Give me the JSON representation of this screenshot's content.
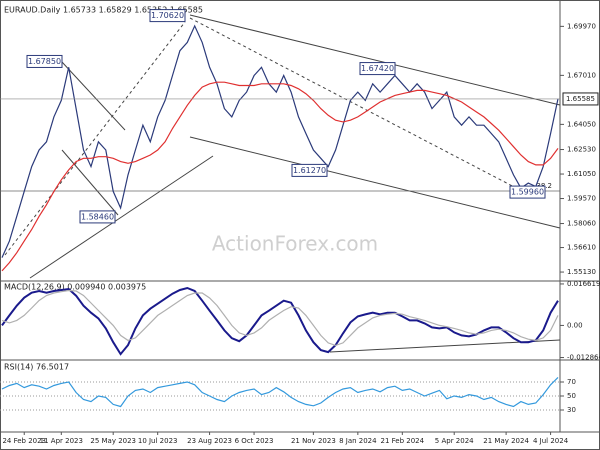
{
  "chart_data": [
    {
      "type": "line",
      "title": "EURAUD.Daily 1.65733 1.65829 1.65352 1.65585",
      "categories": [
        null,
        null,
        null,
        "24 Feb 2023",
        null,
        null,
        null,
        null,
        "11 Apr 2023",
        null,
        null,
        null,
        null,
        null,
        null,
        "25 May 2023",
        null,
        null,
        null,
        null,
        null,
        "10 Jul 2023",
        null,
        null,
        null,
        null,
        null,
        null,
        "23 Aug 2023",
        null,
        null,
        null,
        null,
        null,
        "6 Oct 2023",
        null,
        null,
        null,
        null,
        null,
        null,
        null,
        "21 Nov 2023",
        null,
        null,
        null,
        null,
        null,
        "8 Jan 2024",
        null,
        null,
        null,
        null,
        null,
        "21 Feb 2024",
        null,
        null,
        null,
        null,
        null,
        null,
        "5 Apr 2024",
        null,
        null,
        null,
        null,
        null,
        null,
        "21 May 2024",
        null,
        null,
        null,
        null,
        null,
        "4 Jul 2024",
        null
      ],
      "series": [
        {
          "color": "#2b3a7a",
          "values": [
            1.56,
            1.57,
            1.585,
            1.6,
            1.615,
            1.625,
            1.63,
            1.645,
            1.655,
            1.675,
            1.65,
            1.625,
            1.615,
            1.63,
            1.625,
            1.6,
            1.59,
            1.61,
            1.625,
            1.64,
            1.63,
            1.645,
            1.655,
            1.67,
            1.685,
            1.69,
            1.7,
            1.69,
            1.675,
            1.665,
            1.65,
            1.645,
            1.655,
            1.66,
            1.67,
            1.675,
            1.665,
            1.66,
            1.67,
            1.66,
            1.645,
            1.635,
            1.625,
            1.62,
            1.615,
            1.625,
            1.64,
            1.655,
            1.66,
            1.655,
            1.665,
            1.66,
            1.665,
            1.67,
            1.665,
            1.66,
            1.665,
            1.66,
            1.65,
            1.655,
            1.66,
            1.645,
            1.64,
            1.645,
            1.64,
            1.64,
            1.635,
            1.63,
            1.62,
            1.61,
            1.602,
            1.605,
            1.603,
            1.615,
            1.635,
            1.656
          ]
        },
        {
          "color": "#e03030",
          "values": [
            1.552,
            1.557,
            1.563,
            1.57,
            1.577,
            1.585,
            1.592,
            1.6,
            1.607,
            1.613,
            1.618,
            1.62,
            1.62,
            1.621,
            1.621,
            1.62,
            1.618,
            1.617,
            1.618,
            1.62,
            1.622,
            1.625,
            1.63,
            1.638,
            1.645,
            1.652,
            1.658,
            1.663,
            1.665,
            1.666,
            1.666,
            1.665,
            1.664,
            1.664,
            1.664,
            1.665,
            1.665,
            1.665,
            1.665,
            1.664,
            1.662,
            1.659,
            1.655,
            1.65,
            1.646,
            1.643,
            1.642,
            1.643,
            1.645,
            1.648,
            1.651,
            1.654,
            1.656,
            1.658,
            1.659,
            1.66,
            1.661,
            1.661,
            1.66,
            1.659,
            1.658,
            1.656,
            1.654,
            1.651,
            1.648,
            1.645,
            1.641,
            1.637,
            1.632,
            1.627,
            1.622,
            1.618,
            1.616,
            1.616,
            1.62,
            1.626
          ]
        }
      ],
      "ylim": [
        1.5465,
        1.7126
      ],
      "yticks": [
        {
          "value": 1.6997,
          "label": "1.69970"
        },
        {
          "value": 1.6701,
          "label": "1.67010"
        },
        {
          "value": 1.6405,
          "label": "1.64050"
        },
        {
          "value": 1.6253,
          "label": "1.62530"
        },
        {
          "value": 1.6105,
          "label": "1.61050"
        },
        {
          "value": 1.5957,
          "label": "1.59570"
        },
        {
          "value": 1.5806,
          "label": "1.58060"
        },
        {
          "value": 1.5661,
          "label": "1.56610"
        },
        {
          "value": 1.5513,
          "label": "1.55130"
        }
      ],
      "last": {
        "value": 1.65585,
        "label": "1.65585"
      },
      "annotations": [
        {
          "value": 1.7062,
          "label": "1.70620"
        },
        {
          "value": 1.6785,
          "label": "1.67850"
        },
        {
          "value": 1.6742,
          "label": "1.67420"
        },
        {
          "value": 1.6127,
          "label": "1.61270"
        },
        {
          "value": 1.5846,
          "label": "1.58460"
        },
        {
          "value": 1.5996,
          "label": "1.59960"
        }
      ],
      "fib_label": "38.2",
      "watermark": "ActionForex.com"
    },
    {
      "type": "line",
      "title": "MACD(12,26,9) 0.009940 0.003975",
      "series": [
        {
          "color": "#1a1a8c",
          "values": [
            0.0,
            0.004,
            0.0079,
            0.0111,
            0.0131,
            0.0138,
            0.0131,
            0.0138,
            0.0142,
            0.0146,
            0.0119,
            0.0079,
            0.0051,
            0.0028,
            -0.0012,
            -0.0067,
            -0.0115,
            -0.0079,
            -0.0012,
            0.004,
            0.0067,
            0.0087,
            0.0107,
            0.0127,
            0.0142,
            0.015,
            0.0138,
            0.0099,
            0.0059,
            0.002,
            -0.002,
            -0.0051,
            -0.0063,
            -0.004,
            0.0,
            0.004,
            0.0059,
            0.0079,
            0.0099,
            0.0091,
            0.004,
            -0.002,
            -0.0067,
            -0.0099,
            -0.0107,
            -0.0079,
            -0.0032,
            0.0012,
            0.0036,
            0.0044,
            0.0051,
            0.0044,
            0.0051,
            0.0051,
            0.0036,
            0.002,
            0.002,
            0.0008,
            -0.0008,
            -0.0012,
            -0.0008,
            -0.0028,
            -0.004,
            -0.0044,
            -0.0036,
            -0.002,
            -0.0008,
            -0.0008,
            -0.0028,
            -0.0051,
            -0.0067,
            -0.0067,
            -0.0059,
            -0.002,
            0.0051,
            0.0099
          ]
        },
        {
          "color": "#b0b0b0",
          "values": [
            0.002,
            0.001,
            0.002,
            0.004,
            0.007,
            0.01,
            0.012,
            0.013,
            0.0135,
            0.014,
            0.0138,
            0.012,
            0.009,
            0.006,
            0.003,
            0.0,
            -0.004,
            -0.006,
            -0.005,
            -0.002,
            0.001,
            0.004,
            0.006,
            0.008,
            0.01,
            0.012,
            0.013,
            0.013,
            0.011,
            0.008,
            0.004,
            0.0,
            -0.003,
            -0.004,
            -0.003,
            -0.001,
            0.002,
            0.004,
            0.006,
            0.0075,
            0.007,
            0.004,
            0.0,
            -0.004,
            -0.007,
            -0.008,
            -0.007,
            -0.004,
            -0.001,
            0.001,
            0.003,
            0.004,
            0.0045,
            0.0048,
            0.0045,
            0.0035,
            0.0028,
            0.002,
            0.001,
            0.0,
            -0.0005,
            -0.0012,
            -0.002,
            -0.003,
            -0.0035,
            -0.003,
            -0.002,
            -0.0015,
            -0.002,
            -0.003,
            -0.0045,
            -0.0055,
            -0.006,
            -0.005,
            -0.002,
            0.004
          ]
        }
      ],
      "ylim": [
        -0.01385,
        0.0178
      ],
      "yticks": [
        0.016619,
        {
          "value": 0,
          "label": "0.00"
        },
        -0.012864
      ]
    },
    {
      "type": "line",
      "title": "RSI(14) 76.5017",
      "series": [
        {
          "color": "#3399dd",
          "values": [
            60,
            65,
            68,
            62,
            66,
            64,
            60,
            65,
            68,
            70,
            55,
            45,
            42,
            50,
            48,
            38,
            35,
            50,
            58,
            60,
            55,
            62,
            64,
            66,
            68,
            70,
            66,
            55,
            50,
            45,
            42,
            50,
            55,
            58,
            60,
            52,
            55,
            62,
            56,
            48,
            42,
            38,
            36,
            40,
            48,
            55,
            60,
            62,
            55,
            58,
            60,
            56,
            62,
            64,
            58,
            60,
            55,
            50,
            54,
            58,
            46,
            50,
            48,
            52,
            50,
            45,
            48,
            42,
            38,
            35,
            42,
            38,
            40,
            52,
            66,
            76.5
          ]
        }
      ],
      "ylim": [
        0,
        100
      ],
      "yticks": [
        70,
        50,
        30
      ],
      "grid": true
    }
  ]
}
